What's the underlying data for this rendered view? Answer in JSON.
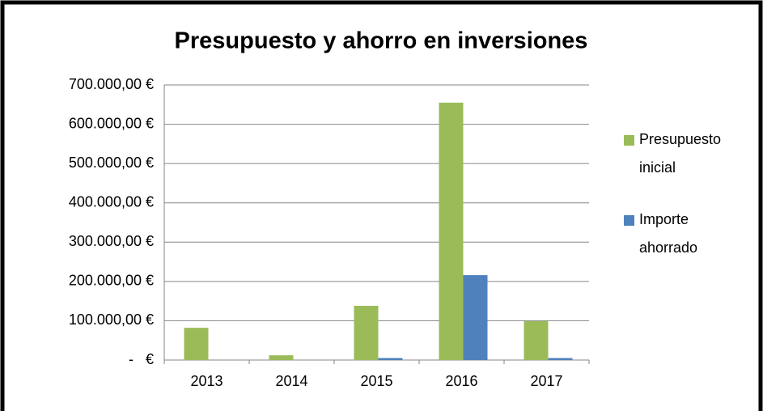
{
  "chart_data": {
    "type": "bar",
    "title": "Presupuesto y ahorro en inversiones",
    "categories": [
      "2013",
      "2014",
      "2015",
      "2016",
      "2017"
    ],
    "series": [
      {
        "name": "Presupuesto inicial",
        "color": "#9bbb59",
        "values": [
          82000,
          12000,
          138000,
          655000,
          99000
        ]
      },
      {
        "name": "Importe ahorrado",
        "color": "#4f81bd",
        "values": [
          0,
          0,
          5000,
          216000,
          5000
        ]
      }
    ],
    "ylim": [
      0,
      700000
    ],
    "yticks": [
      {
        "value": 0,
        "label": "-   €"
      },
      {
        "value": 100000,
        "label": "100.000,00 €"
      },
      {
        "value": 200000,
        "label": "200.000,00 €"
      },
      {
        "value": 300000,
        "label": "300.000,00 €"
      },
      {
        "value": 400000,
        "label": "400.000,00 €"
      },
      {
        "value": 500000,
        "label": "500.000,00 €"
      },
      {
        "value": 600000,
        "label": "600.000,00 €"
      },
      {
        "value": 700000,
        "label": "700.000,00 €"
      }
    ],
    "grid": true,
    "legend": "right"
  }
}
